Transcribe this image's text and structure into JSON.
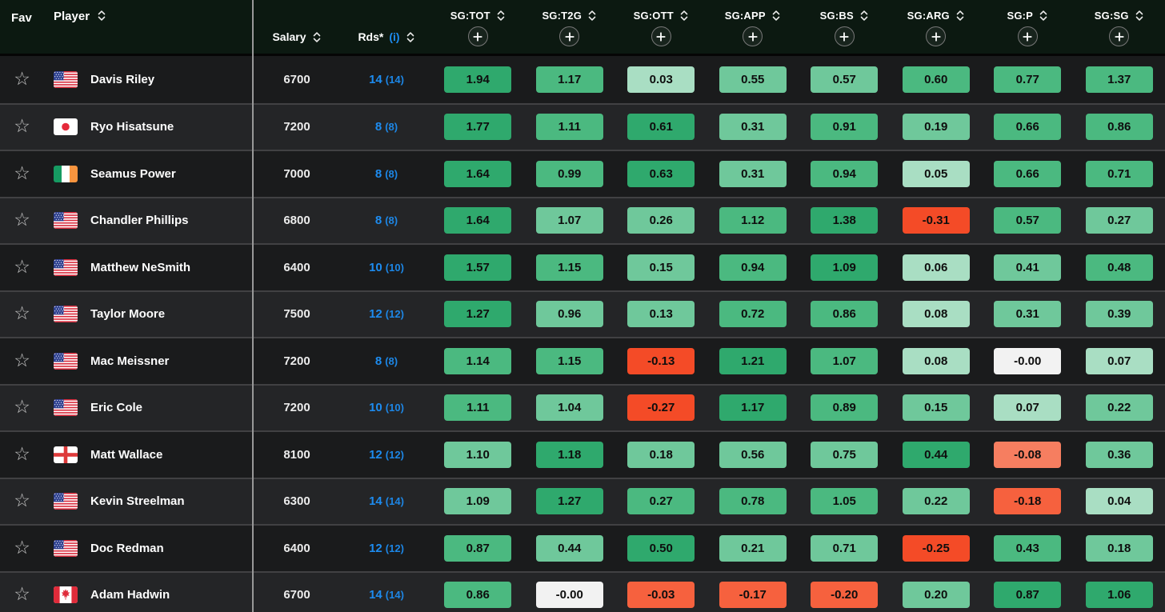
{
  "colors": {
    "g4": "#2fa96d",
    "g3": "#4bb980",
    "g2": "#6fc89b",
    "g1": "#a9dec3",
    "w": "#f2f2f2",
    "rl": "#f67e60",
    "rm": "#f6613e",
    "rs": "#f44b27",
    "accent_blue": "#1d8cf0",
    "header_bg": "#0c1911",
    "row_dark": "#1a1b1c",
    "row_light": "#242527"
  },
  "icons": {
    "favorite": "☆",
    "sort": "chevron-up-down",
    "add_column": "plus"
  },
  "table": {
    "header": {
      "fav_label": "Fav",
      "player_label": "Player",
      "salary_label": "Salary",
      "rds_label": "Rds*",
      "rds_info_label": "(i)",
      "sg_columns": [
        "SG:TOT",
        "SG:T2G",
        "SG:OTT",
        "SG:APP",
        "SG:BS",
        "SG:ARG",
        "SG:P",
        "SG:SG"
      ]
    },
    "rows": [
      {
        "player": "Davis Riley",
        "country": "usa",
        "salary": "6700",
        "rds": "14",
        "rds_total": "(14)",
        "stats": [
          {
            "v": "1.94",
            "tone": "g4"
          },
          {
            "v": "1.17",
            "tone": "g3"
          },
          {
            "v": "0.03",
            "tone": "g1"
          },
          {
            "v": "0.55",
            "tone": "g2"
          },
          {
            "v": "0.57",
            "tone": "g2"
          },
          {
            "v": "0.60",
            "tone": "g3"
          },
          {
            "v": "0.77",
            "tone": "g3"
          },
          {
            "v": "1.37",
            "tone": "g3"
          }
        ]
      },
      {
        "player": "Ryo Hisatsune",
        "country": "jpn",
        "salary": "7200",
        "rds": "8",
        "rds_total": "(8)",
        "stats": [
          {
            "v": "1.77",
            "tone": "g4"
          },
          {
            "v": "1.11",
            "tone": "g3"
          },
          {
            "v": "0.61",
            "tone": "g4"
          },
          {
            "v": "0.31",
            "tone": "g2"
          },
          {
            "v": "0.91",
            "tone": "g3"
          },
          {
            "v": "0.19",
            "tone": "g2"
          },
          {
            "v": "0.66",
            "tone": "g3"
          },
          {
            "v": "0.86",
            "tone": "g3"
          }
        ]
      },
      {
        "player": "Seamus Power",
        "country": "irl",
        "salary": "7000",
        "rds": "8",
        "rds_total": "(8)",
        "stats": [
          {
            "v": "1.64",
            "tone": "g4"
          },
          {
            "v": "0.99",
            "tone": "g3"
          },
          {
            "v": "0.63",
            "tone": "g4"
          },
          {
            "v": "0.31",
            "tone": "g2"
          },
          {
            "v": "0.94",
            "tone": "g3"
          },
          {
            "v": "0.05",
            "tone": "g1"
          },
          {
            "v": "0.66",
            "tone": "g3"
          },
          {
            "v": "0.71",
            "tone": "g3"
          }
        ]
      },
      {
        "player": "Chandler Phillips",
        "country": "usa",
        "salary": "6800",
        "rds": "8",
        "rds_total": "(8)",
        "stats": [
          {
            "v": "1.64",
            "tone": "g4"
          },
          {
            "v": "1.07",
            "tone": "g2"
          },
          {
            "v": "0.26",
            "tone": "g2"
          },
          {
            "v": "1.12",
            "tone": "g3"
          },
          {
            "v": "1.38",
            "tone": "g4"
          },
          {
            "v": "-0.31",
            "tone": "rs"
          },
          {
            "v": "0.57",
            "tone": "g3"
          },
          {
            "v": "0.27",
            "tone": "g2"
          }
        ]
      },
      {
        "player": "Matthew NeSmith",
        "country": "usa",
        "salary": "6400",
        "rds": "10",
        "rds_total": "(10)",
        "stats": [
          {
            "v": "1.57",
            "tone": "g4"
          },
          {
            "v": "1.15",
            "tone": "g3"
          },
          {
            "v": "0.15",
            "tone": "g2"
          },
          {
            "v": "0.94",
            "tone": "g3"
          },
          {
            "v": "1.09",
            "tone": "g4"
          },
          {
            "v": "0.06",
            "tone": "g1"
          },
          {
            "v": "0.41",
            "tone": "g2"
          },
          {
            "v": "0.48",
            "tone": "g3"
          }
        ]
      },
      {
        "player": "Taylor Moore",
        "country": "usa",
        "salary": "7500",
        "rds": "12",
        "rds_total": "(12)",
        "stats": [
          {
            "v": "1.27",
            "tone": "g4"
          },
          {
            "v": "0.96",
            "tone": "g2"
          },
          {
            "v": "0.13",
            "tone": "g2"
          },
          {
            "v": "0.72",
            "tone": "g3"
          },
          {
            "v": "0.86",
            "tone": "g3"
          },
          {
            "v": "0.08",
            "tone": "g1"
          },
          {
            "v": "0.31",
            "tone": "g2"
          },
          {
            "v": "0.39",
            "tone": "g2"
          }
        ]
      },
      {
        "player": "Mac Meissner",
        "country": "usa",
        "salary": "7200",
        "rds": "8",
        "rds_total": "(8)",
        "stats": [
          {
            "v": "1.14",
            "tone": "g3"
          },
          {
            "v": "1.15",
            "tone": "g3"
          },
          {
            "v": "-0.13",
            "tone": "rs"
          },
          {
            "v": "1.21",
            "tone": "g4"
          },
          {
            "v": "1.07",
            "tone": "g3"
          },
          {
            "v": "0.08",
            "tone": "g1"
          },
          {
            "v": "-0.00",
            "tone": "w"
          },
          {
            "v": "0.07",
            "tone": "g1"
          }
        ]
      },
      {
        "player": "Eric Cole",
        "country": "usa",
        "salary": "7200",
        "rds": "10",
        "rds_total": "(10)",
        "stats": [
          {
            "v": "1.11",
            "tone": "g3"
          },
          {
            "v": "1.04",
            "tone": "g2"
          },
          {
            "v": "-0.27",
            "tone": "rs"
          },
          {
            "v": "1.17",
            "tone": "g4"
          },
          {
            "v": "0.89",
            "tone": "g3"
          },
          {
            "v": "0.15",
            "tone": "g2"
          },
          {
            "v": "0.07",
            "tone": "g1"
          },
          {
            "v": "0.22",
            "tone": "g2"
          }
        ]
      },
      {
        "player": "Matt Wallace",
        "country": "eng",
        "salary": "8100",
        "rds": "12",
        "rds_total": "(12)",
        "stats": [
          {
            "v": "1.10",
            "tone": "g2"
          },
          {
            "v": "1.18",
            "tone": "g4"
          },
          {
            "v": "0.18",
            "tone": "g2"
          },
          {
            "v": "0.56",
            "tone": "g2"
          },
          {
            "v": "0.75",
            "tone": "g2"
          },
          {
            "v": "0.44",
            "tone": "g4"
          },
          {
            "v": "-0.08",
            "tone": "rl"
          },
          {
            "v": "0.36",
            "tone": "g2"
          }
        ]
      },
      {
        "player": "Kevin Streelman",
        "country": "usa",
        "salary": "6300",
        "rds": "14",
        "rds_total": "(14)",
        "stats": [
          {
            "v": "1.09",
            "tone": "g2"
          },
          {
            "v": "1.27",
            "tone": "g4"
          },
          {
            "v": "0.27",
            "tone": "g3"
          },
          {
            "v": "0.78",
            "tone": "g3"
          },
          {
            "v": "1.05",
            "tone": "g3"
          },
          {
            "v": "0.22",
            "tone": "g2"
          },
          {
            "v": "-0.18",
            "tone": "rm"
          },
          {
            "v": "0.04",
            "tone": "g1"
          }
        ]
      },
      {
        "player": "Doc Redman",
        "country": "usa",
        "salary": "6400",
        "rds": "12",
        "rds_total": "(12)",
        "stats": [
          {
            "v": "0.87",
            "tone": "g3"
          },
          {
            "v": "0.44",
            "tone": "g2"
          },
          {
            "v": "0.50",
            "tone": "g4"
          },
          {
            "v": "0.21",
            "tone": "g2"
          },
          {
            "v": "0.71",
            "tone": "g2"
          },
          {
            "v": "-0.25",
            "tone": "rs"
          },
          {
            "v": "0.43",
            "tone": "g3"
          },
          {
            "v": "0.18",
            "tone": "g2"
          }
        ]
      },
      {
        "player": "Adam Hadwin",
        "country": "can",
        "salary": "6700",
        "rds": "14",
        "rds_total": "(14)",
        "stats": [
          {
            "v": "0.86",
            "tone": "g3"
          },
          {
            "v": "-0.00",
            "tone": "w"
          },
          {
            "v": "-0.03",
            "tone": "rm"
          },
          {
            "v": "-0.17",
            "tone": "rm"
          },
          {
            "v": "-0.20",
            "tone": "rm"
          },
          {
            "v": "0.20",
            "tone": "g2"
          },
          {
            "v": "0.87",
            "tone": "g4"
          },
          {
            "v": "1.06",
            "tone": "g4"
          }
        ]
      }
    ]
  }
}
